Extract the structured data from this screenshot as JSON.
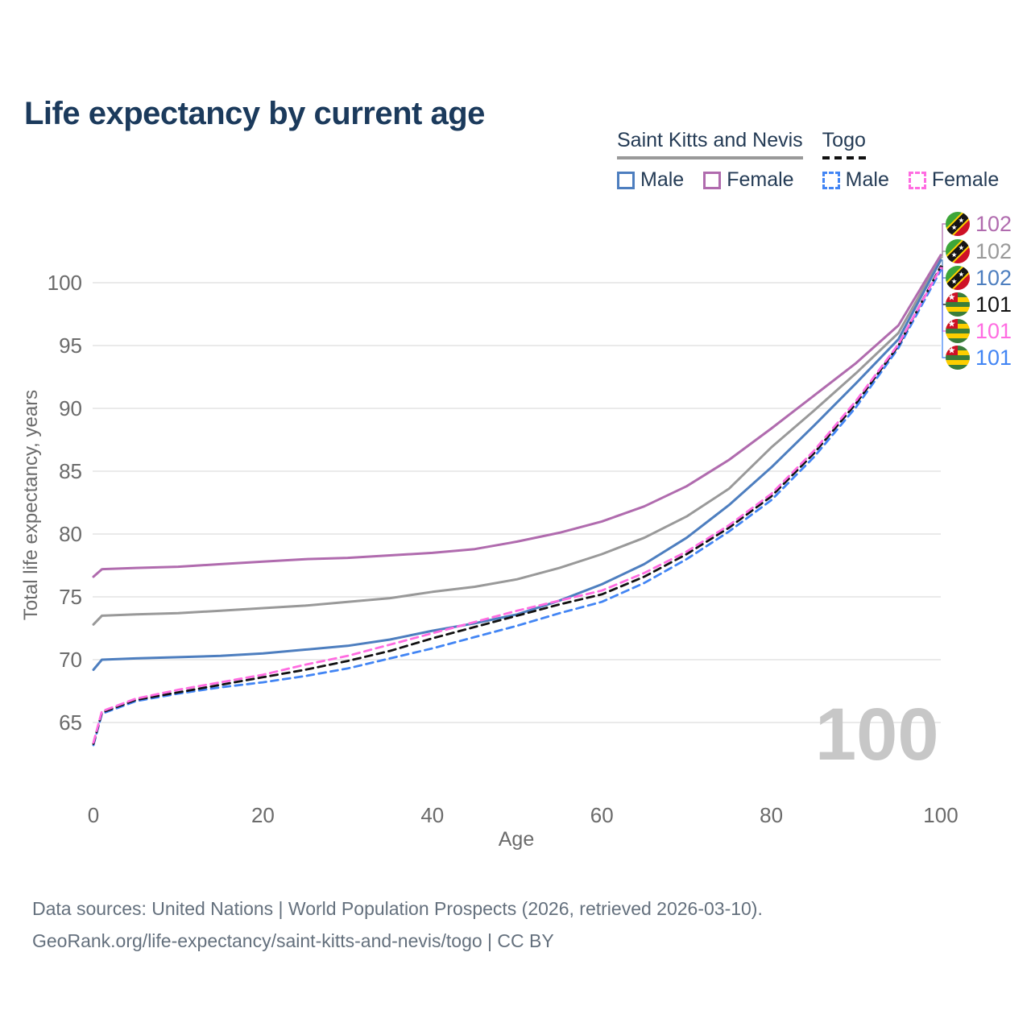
{
  "title": "Life expectancy by current age",
  "watermark": "100",
  "legend": {
    "groups": [
      {
        "name": "Saint Kitts and Nevis",
        "line_style": "solid",
        "line_color": "#999999",
        "items": [
          {
            "label": "Male",
            "color": "#4d7ebf",
            "dash": "solid"
          },
          {
            "label": "Female",
            "color": "#b06bae",
            "dash": "solid"
          }
        ]
      },
      {
        "name": "Togo",
        "line_style": "dashed",
        "line_color": "#111111",
        "items": [
          {
            "label": "Male",
            "color": "#4285f4",
            "dash": "dashed"
          },
          {
            "label": "Female",
            "color": "#ff6ce1",
            "dash": "dashed"
          }
        ]
      }
    ]
  },
  "chart_data": {
    "type": "line",
    "title": "Life expectancy by current age",
    "xlabel": "Age",
    "ylabel": "Total life expectancy, years",
    "x_ticks": [
      0,
      20,
      40,
      60,
      80,
      100
    ],
    "y_ticks": [
      65,
      70,
      75,
      80,
      85,
      90,
      95,
      100
    ],
    "xlim": [
      0,
      100
    ],
    "ylim": [
      62.5,
      103.5
    ],
    "grid": true,
    "x": [
      0,
      1,
      5,
      10,
      15,
      20,
      25,
      30,
      35,
      40,
      45,
      50,
      55,
      60,
      65,
      70,
      75,
      80,
      85,
      90,
      95,
      100
    ],
    "series": [
      {
        "name": "Saint Kitts and Nevis – Female",
        "color": "#b06bae",
        "dash": "solid",
        "end_label": "102",
        "flag": "saint-kitts-and-nevis",
        "values": [
          76.6,
          77.2,
          77.3,
          77.4,
          77.6,
          77.8,
          78.0,
          78.1,
          78.3,
          78.5,
          78.8,
          79.4,
          80.1,
          81.0,
          82.2,
          83.8,
          85.9,
          88.4,
          91.0,
          93.6,
          96.6,
          102.2
        ]
      },
      {
        "name": "Saint Kitts and Nevis – Total",
        "color": "#999999",
        "dash": "solid",
        "end_label": "102",
        "flag": "saint-kitts-and-nevis",
        "values": [
          72.8,
          73.5,
          73.6,
          73.7,
          73.9,
          74.1,
          74.3,
          74.6,
          74.9,
          75.4,
          75.8,
          76.4,
          77.3,
          78.4,
          79.7,
          81.4,
          83.6,
          86.9,
          89.8,
          92.8,
          96.0,
          102.0
        ]
      },
      {
        "name": "Saint Kitts and Nevis – Male",
        "color": "#4d7ebf",
        "dash": "solid",
        "end_label": "102",
        "flag": "saint-kitts-and-nevis",
        "values": [
          69.2,
          70.0,
          70.1,
          70.2,
          70.3,
          70.5,
          70.8,
          71.1,
          71.6,
          72.3,
          72.9,
          73.6,
          74.7,
          76.0,
          77.6,
          79.7,
          82.3,
          85.3,
          88.6,
          92.0,
          95.5,
          101.8
        ]
      },
      {
        "name": "Togo – Total",
        "color": "#111111",
        "dash": "dashed",
        "end_label": "101",
        "flag": "togo",
        "values": [
          63.3,
          65.8,
          66.8,
          67.4,
          68.0,
          68.6,
          69.2,
          69.9,
          70.7,
          71.7,
          72.6,
          73.5,
          74.4,
          75.2,
          76.6,
          78.4,
          80.5,
          83.0,
          86.4,
          90.4,
          95.0,
          101.3
        ]
      },
      {
        "name": "Togo – Female",
        "color": "#ff6ce1",
        "dash": "dashed",
        "end_label": "101",
        "flag": "togo",
        "values": [
          63.4,
          65.9,
          66.9,
          67.6,
          68.2,
          68.8,
          69.6,
          70.3,
          71.2,
          72.1,
          73.0,
          73.9,
          74.7,
          75.5,
          76.9,
          78.6,
          80.7,
          83.2,
          86.6,
          90.6,
          95.1,
          101.2
        ]
      },
      {
        "name": "Togo – Male",
        "color": "#4285f4",
        "dash": "dashed",
        "end_label": "101",
        "flag": "togo",
        "values": [
          63.2,
          65.7,
          66.7,
          67.3,
          67.8,
          68.2,
          68.7,
          69.3,
          70.1,
          70.9,
          71.8,
          72.7,
          73.7,
          74.6,
          76.1,
          78.0,
          80.2,
          82.7,
          86.1,
          90.1,
          94.8,
          101.0
        ]
      }
    ]
  },
  "footer": {
    "line1": "Data sources: United Nations | World Population Prospects (2026, retrieved 2026-03-10).",
    "line2": "GeoRank.org/life-expectancy/saint-kitts-and-nevis/togo | CC BY"
  }
}
